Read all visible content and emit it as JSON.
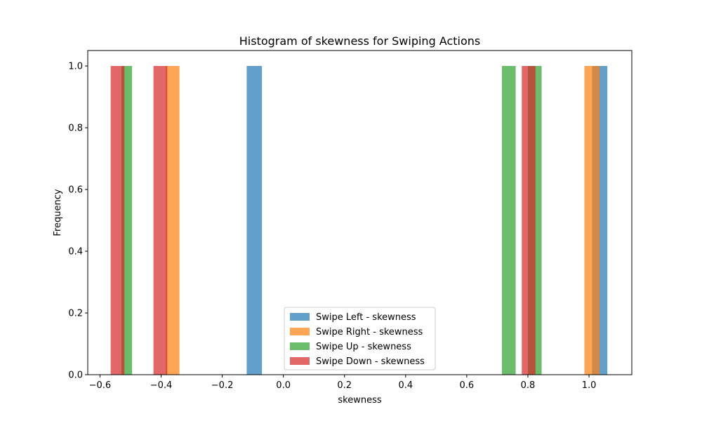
{
  "chart_data": {
    "type": "histogram",
    "title": "Histogram of skewness for Swiping Actions",
    "xlabel": "skewness",
    "ylabel": "Frequency",
    "xlim": [
      -0.64,
      1.14
    ],
    "ylim": [
      0,
      1.05
    ],
    "xticks": [
      -0.6,
      -0.4,
      -0.2,
      0.0,
      0.2,
      0.4,
      0.6,
      0.8,
      1.0
    ],
    "xtick_labels": [
      "−0.6",
      "−0.4",
      "−0.2",
      "0.0",
      "0.2",
      "0.4",
      "0.6",
      "0.8",
      "1.0"
    ],
    "yticks": [
      0.0,
      0.2,
      0.4,
      0.6,
      0.8,
      1.0
    ],
    "ytick_labels": [
      "0.0",
      "0.2",
      "0.4",
      "0.6",
      "0.8",
      "1.0"
    ],
    "legend_position": "lower-center",
    "series": [
      {
        "name": "Swipe Left - skewness",
        "color": "#1f77b4",
        "bars": [
          {
            "x0": -0.12,
            "x1": -0.07,
            "count": 1
          },
          {
            "x0": 1.01,
            "x1": 1.06,
            "count": 1
          }
        ]
      },
      {
        "name": "Swipe Right - skewness",
        "color": "#ff7f0e",
        "bars": [
          {
            "x0": -0.385,
            "x1": -0.34,
            "count": 1
          },
          {
            "x0": 0.985,
            "x1": 1.035,
            "count": 1
          }
        ]
      },
      {
        "name": "Swipe Up - skewness",
        "color": "#2ca02c",
        "bars": [
          {
            "x0": -0.53,
            "x1": -0.495,
            "count": 1
          },
          {
            "x0": 0.715,
            "x1": 0.76,
            "count": 1
          },
          {
            "x0": 0.8,
            "x1": 0.845,
            "count": 1
          }
        ]
      },
      {
        "name": "Swipe Down - skewness",
        "color": "#d62728",
        "bars": [
          {
            "x0": -0.565,
            "x1": -0.52,
            "count": 1
          },
          {
            "x0": -0.425,
            "x1": -0.38,
            "count": 1
          },
          {
            "x0": 0.78,
            "x1": 0.825,
            "count": 1
          }
        ]
      }
    ]
  }
}
